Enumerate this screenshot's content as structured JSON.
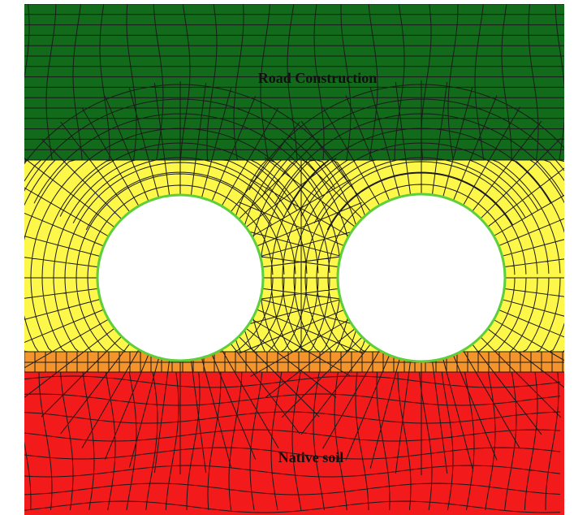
{
  "labels": {
    "top": "Road Construction",
    "bottom": "Native soil"
  }
}
